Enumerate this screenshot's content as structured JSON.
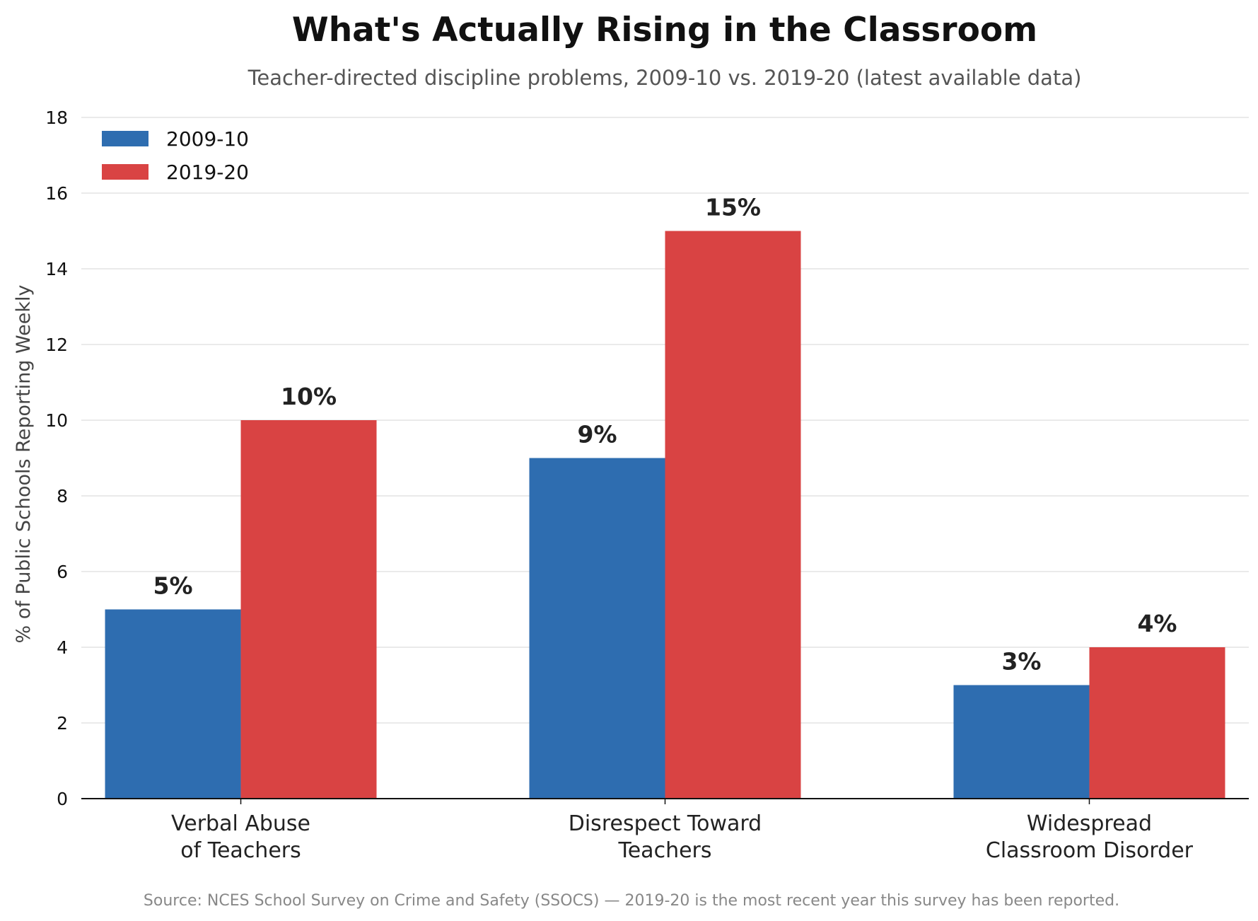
{
  "chart_data": {
    "type": "bar",
    "title": "What's Actually Rising in the Classroom",
    "subtitle": "Teacher-directed discipline problems, 2009-10 vs. 2019-20 (latest available data)",
    "xlabel": "",
    "ylabel": "% of Public Schools Reporting Weekly",
    "ylim": [
      0,
      18
    ],
    "yticks": [
      0,
      2,
      4,
      6,
      8,
      10,
      12,
      14,
      16,
      18
    ],
    "categories": [
      [
        "Verbal Abuse",
        "of Teachers"
      ],
      [
        "Disrespect Toward",
        "Teachers"
      ],
      [
        "Widespread",
        "Classroom Disorder"
      ]
    ],
    "series": [
      {
        "name": "2009-10",
        "color": "#2e6db0",
        "values": [
          5,
          9,
          3
        ],
        "labels": [
          "5%",
          "9%",
          "3%"
        ]
      },
      {
        "name": "2019-20",
        "color": "#d94343",
        "values": [
          10,
          15,
          4
        ],
        "labels": [
          "10%",
          "15%",
          "4%"
        ]
      }
    ],
    "grid": "horizontal",
    "legend_position": "top-left",
    "source": "Source: NCES School Survey on Crime and Safety (SSOCS) — 2019-20 is the most recent year this survey has been reported."
  }
}
